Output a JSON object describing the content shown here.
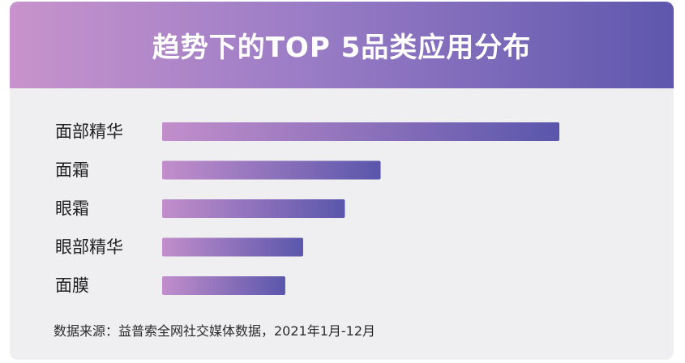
{
  "title": "趋势下的TOP 5品类应用分布",
  "source": "数据来源：益普索全网社交媒体数据，2021年1月-12月",
  "colors": {
    "bar_start": "#c28ecb",
    "bar_end": "#5a56ac"
  },
  "chart_data": {
    "type": "bar",
    "orientation": "horizontal",
    "categories": [
      "面部精华",
      "面霜",
      "眼霜",
      "眼部精华",
      "面膜"
    ],
    "values": [
      100,
      55,
      46,
      35.5,
      31
    ],
    "xlim": [
      0,
      100
    ],
    "grid": false,
    "legend": "none"
  }
}
